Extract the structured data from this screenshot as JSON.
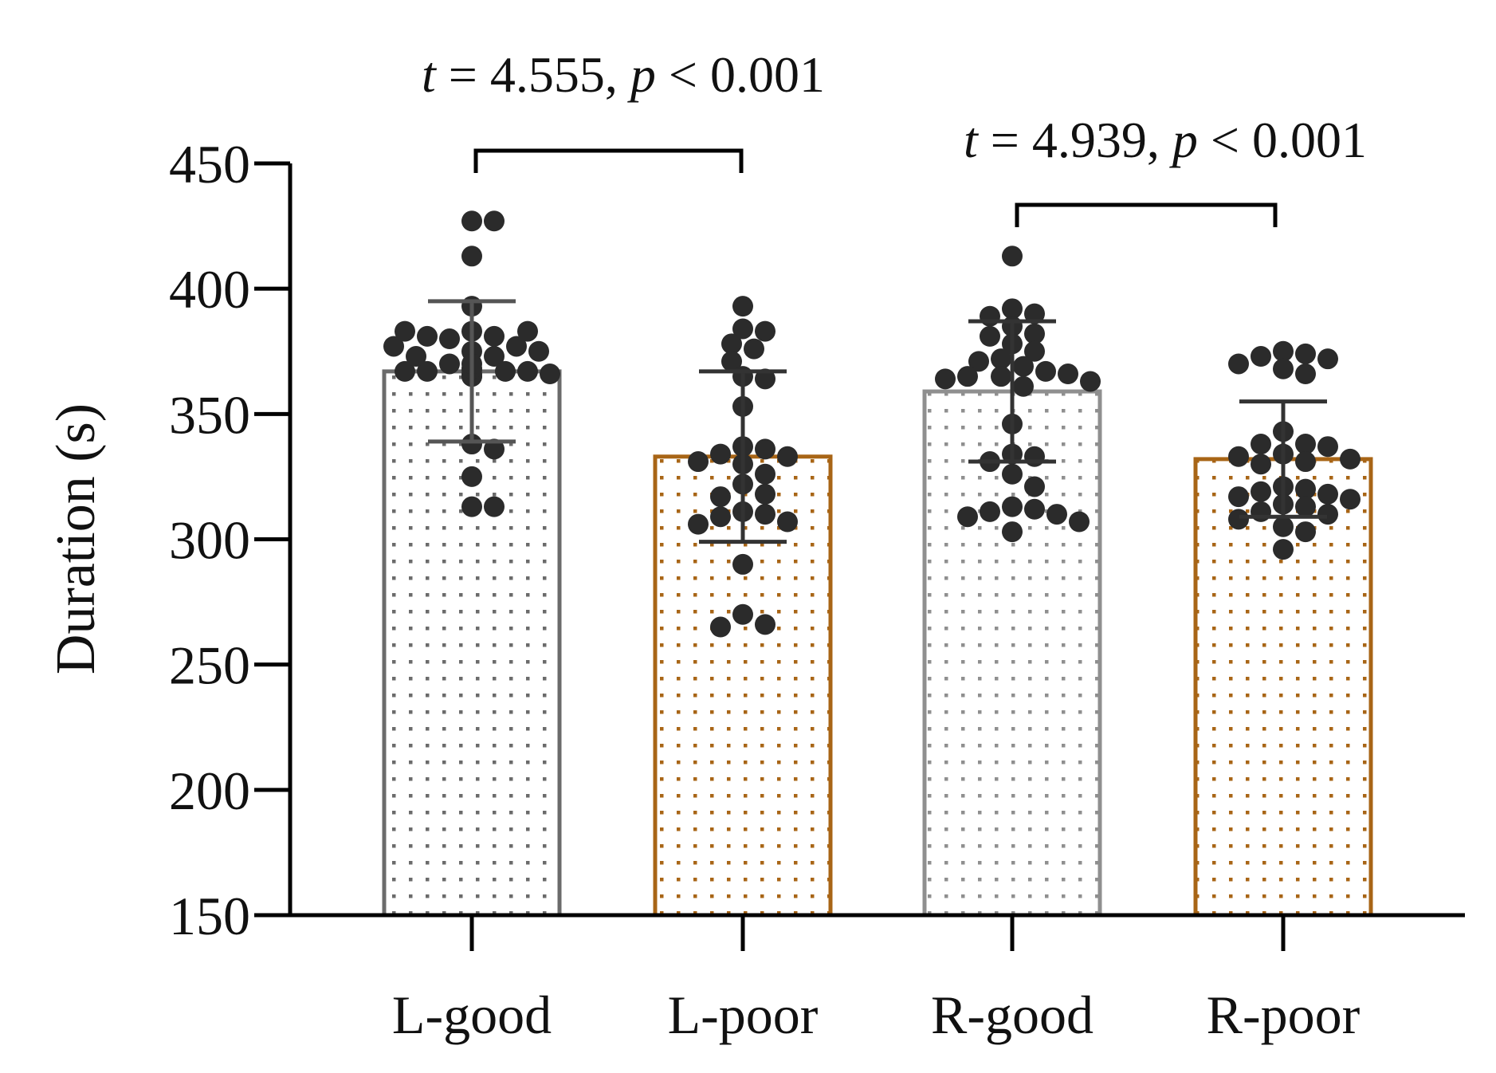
{
  "chart_data": {
    "type": "bar",
    "ylabel": "Duration (s)",
    "ylim": [
      150,
      450
    ],
    "yticks": [
      150,
      200,
      250,
      300,
      350,
      400,
      450
    ],
    "categories": [
      "L-good",
      "L-poor",
      "R-good",
      "R-poor"
    ],
    "series": [
      {
        "values": [
          367,
          333,
          359,
          332
        ],
        "sd": [
          28,
          34,
          28,
          23
        ],
        "colors": [
          "#6b6b6b",
          "#a86516",
          "#8f8f8f",
          "#a86516"
        ],
        "points": [
          [
            427,
            427,
            413,
            393,
            383,
            381,
            380,
            377,
            375,
            373,
            370,
            368,
            367,
            367,
            367,
            367,
            366,
            365,
            365,
            366,
            368,
            370,
            373,
            375,
            377,
            381,
            383,
            383,
            338,
            336,
            325,
            313,
            313
          ],
          [
            393,
            384,
            383,
            378,
            376,
            371,
            365,
            364,
            353,
            337,
            336,
            334,
            333,
            331,
            330,
            326,
            322,
            318,
            317,
            311,
            310,
            309,
            307,
            306,
            290,
            270,
            266,
            265
          ],
          [
            413,
            392,
            390,
            389,
            385,
            382,
            381,
            378,
            375,
            372,
            371,
            369,
            367,
            366,
            365,
            365,
            364,
            363,
            361,
            346,
            334,
            333,
            331,
            326,
            321,
            313,
            312,
            311,
            310,
            309,
            307,
            303
          ],
          [
            375,
            374,
            373,
            372,
            370,
            368,
            366,
            343,
            338,
            338,
            337,
            334,
            333,
            332,
            331,
            330,
            321,
            320,
            319,
            318,
            317,
            316,
            314,
            313,
            311,
            310,
            308,
            305,
            303,
            296
          ]
        ]
      }
    ],
    "annotations": [
      {
        "between": [
          "L-good",
          "L-poor"
        ],
        "t_prefix": "t",
        "t_value": " = 4.555, ",
        "p_prefix": "p",
        "p_value": " < 0.001"
      },
      {
        "between": [
          "R-good",
          "R-poor"
        ],
        "t_prefix": "t",
        "t_value": " = 4.939, ",
        "p_prefix": "p",
        "p_value": " < 0.001"
      }
    ],
    "grid": false,
    "legend": "none"
  }
}
